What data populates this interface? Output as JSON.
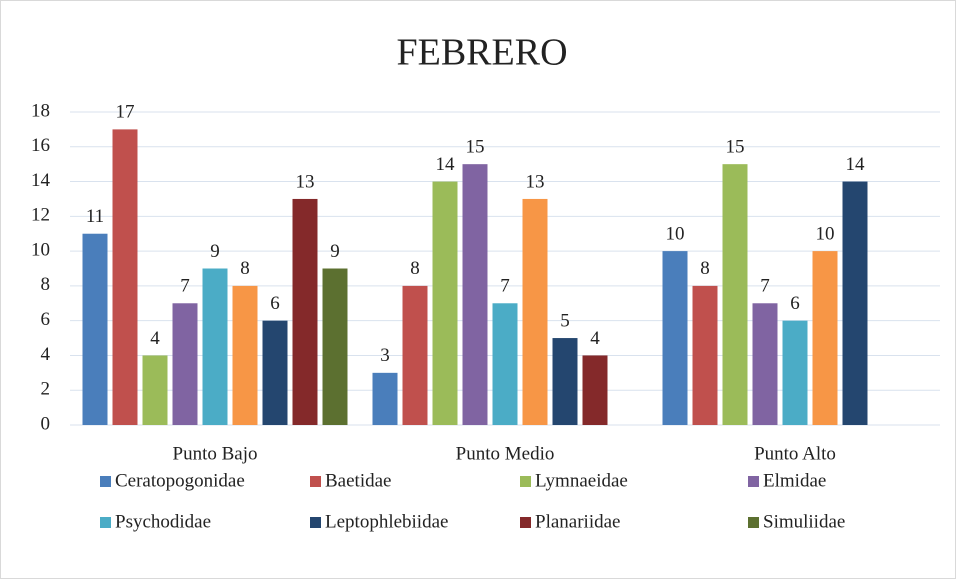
{
  "chart_data": {
    "type": "bar",
    "title": "FEBRERO",
    "categories": [
      "Punto Bajo",
      "Punto Medio",
      "Punto Alto"
    ],
    "ylim": [
      0,
      18
    ],
    "yticks": [
      0,
      2,
      4,
      6,
      8,
      10,
      12,
      14,
      16,
      18
    ],
    "grid": true,
    "series": [
      {
        "name": "Ceratopogonidae",
        "color": "#4a7ebb",
        "values": [
          11,
          3,
          10
        ]
      },
      {
        "name": "Baetidae",
        "color": "#c0504d",
        "values": [
          17,
          8,
          8
        ]
      },
      {
        "name": "Lymnaeidae",
        "color": "#9bbb59",
        "values": [
          4,
          14,
          15
        ]
      },
      {
        "name": "Elmidae",
        "color": "#8064a2",
        "values": [
          7,
          15,
          7
        ]
      },
      {
        "name": "Psychodidae",
        "color": "#4bacc6",
        "values": [
          9,
          7,
          6
        ]
      },
      {
        "name": null,
        "color": "#f79646",
        "values": [
          8,
          13,
          10
        ]
      },
      {
        "name": "Leptophlebiidae",
        "color": "#24466f",
        "values": [
          6,
          5,
          14
        ]
      },
      {
        "name": "Planariidae",
        "color": "#84292a",
        "values": [
          13,
          4,
          null
        ]
      },
      {
        "name": "Simuliidae",
        "color": "#5c7030",
        "values": [
          9,
          null,
          null
        ]
      }
    ]
  }
}
